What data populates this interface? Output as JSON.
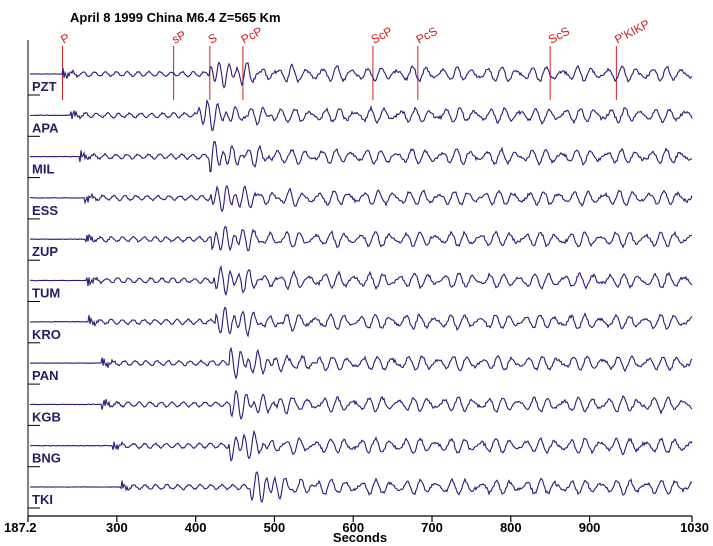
{
  "chart_data": {
    "type": "line",
    "title": "April 8 1999 China M6.4 Z=565 Km",
    "xlabel": "Seconds",
    "xlim": [
      187.2,
      1030
    ],
    "x_ticks": [
      187.2,
      300,
      400,
      500,
      600,
      700,
      800,
      900,
      1030
    ],
    "x_tick_labels": [
      "187.2",
      "300",
      "400",
      "500",
      "600",
      "700",
      "800",
      "900",
      "1030"
    ],
    "phases": [
      {
        "label": "P",
        "x": 231
      },
      {
        "label": "sP",
        "x": 372
      },
      {
        "label": "S",
        "x": 418
      },
      {
        "label": "PcP",
        "x": 460
      },
      {
        "label": "ScP",
        "x": 625
      },
      {
        "label": "PcS",
        "x": 682
      },
      {
        "label": "ScS",
        "x": 850
      },
      {
        "label": "P'KIKP",
        "x": 934
      }
    ],
    "stations": [
      "PZT",
      "APA",
      "MIL",
      "ESS",
      "ZUP",
      "TUM",
      "KRO",
      "PAN",
      "KGB",
      "BNG",
      "TKI"
    ],
    "p_arrivals": [
      231,
      241,
      253,
      259,
      260,
      262,
      264,
      280,
      281,
      294,
      304
    ],
    "s_arrivals": [
      418,
      402,
      418,
      419,
      420,
      423,
      425,
      443,
      444,
      442,
      470
    ],
    "colors": {
      "trace": "#2a1a7a",
      "phase": "#d42020",
      "axis": "#000000"
    }
  }
}
